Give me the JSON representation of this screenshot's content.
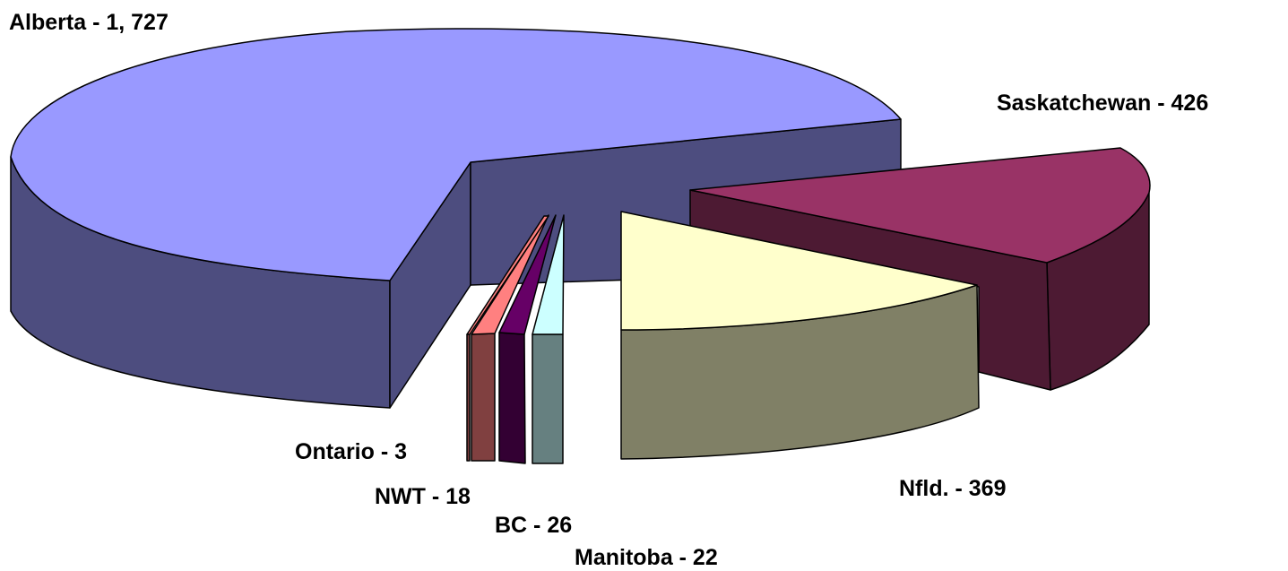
{
  "chart_data": {
    "type": "pie",
    "style": "3d-exploded",
    "title": "",
    "slices": [
      {
        "name": "Alberta",
        "value": 1727,
        "label": "Alberta - 1, 727",
        "color": "#9999FF",
        "side_color": "#4D4D7F"
      },
      {
        "name": "Saskatchewan",
        "value": 426,
        "label": "Saskatchewan - 426",
        "color": "#993366",
        "side_color": "#4D1A33"
      },
      {
        "name": "Nfld.",
        "value": 369,
        "label": "Nfld. - 369",
        "color": "#FFFFCC",
        "side_color": "#808066"
      },
      {
        "name": "Manitoba",
        "value": 22,
        "label": "Manitoba - 22",
        "color": "#CCFFFF",
        "side_color": "#668080"
      },
      {
        "name": "BC",
        "value": 26,
        "label": "BC - 26",
        "color": "#660066",
        "side_color": "#330033"
      },
      {
        "name": "NWT",
        "value": 18,
        "label": "NWT - 18",
        "color": "#FF8080",
        "side_color": "#804040"
      },
      {
        "name": "Ontario",
        "value": 3,
        "label": "Ontario - 3",
        "color": "#FF8080",
        "side_color": "#804040"
      }
    ]
  }
}
